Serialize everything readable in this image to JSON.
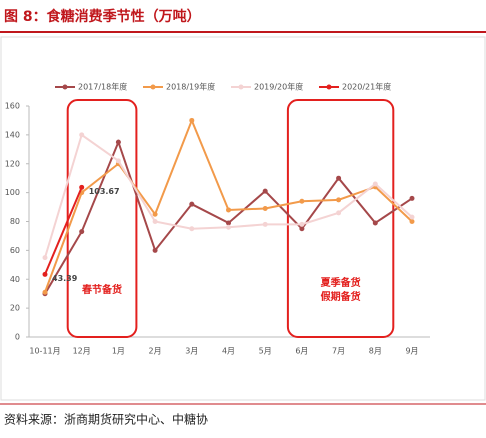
{
  "header": {
    "title": "图 8：食糖消费季节性（万吨）"
  },
  "chart_data": {
    "type": "line",
    "categories": [
      "10-11月",
      "12月",
      "1月",
      "2月",
      "3月",
      "4月",
      "5月",
      "6月",
      "7月",
      "8月",
      "9月"
    ],
    "series": [
      {
        "name": "2017/18年度",
        "color": "#a5484a",
        "values": [
          30,
          73,
          135,
          60,
          92,
          79,
          101,
          75,
          110,
          79,
          96
        ]
      },
      {
        "name": "2018/19年度",
        "color": "#f29a4a",
        "values": [
          31,
          100,
          120,
          85,
          150,
          88,
          89,
          94,
          95,
          104,
          80
        ]
      },
      {
        "name": "2019/20年度",
        "color": "#f4d3d3",
        "values": [
          55,
          140,
          122,
          80,
          75,
          76,
          78,
          78,
          86,
          106,
          83
        ]
      },
      {
        "name": "2020/21年度",
        "color": "#e3201e",
        "values": [
          43.39,
          103.67,
          null,
          null,
          null,
          null,
          null,
          null,
          null,
          null,
          null
        ],
        "data_labels": true
      }
    ],
    "ylim": [
      0,
      160
    ],
    "yticks": [
      0,
      20,
      40,
      60,
      80,
      100,
      120,
      140,
      160
    ],
    "annotations": [
      {
        "lines": [
          "春节备货"
        ],
        "from": 1,
        "to": 2
      },
      {
        "lines": [
          "夏季备货",
          "假期备货"
        ],
        "from": 7,
        "to": 9
      }
    ]
  },
  "footer": {
    "source": "资料来源：浙商期货研究中心、中糖协"
  }
}
